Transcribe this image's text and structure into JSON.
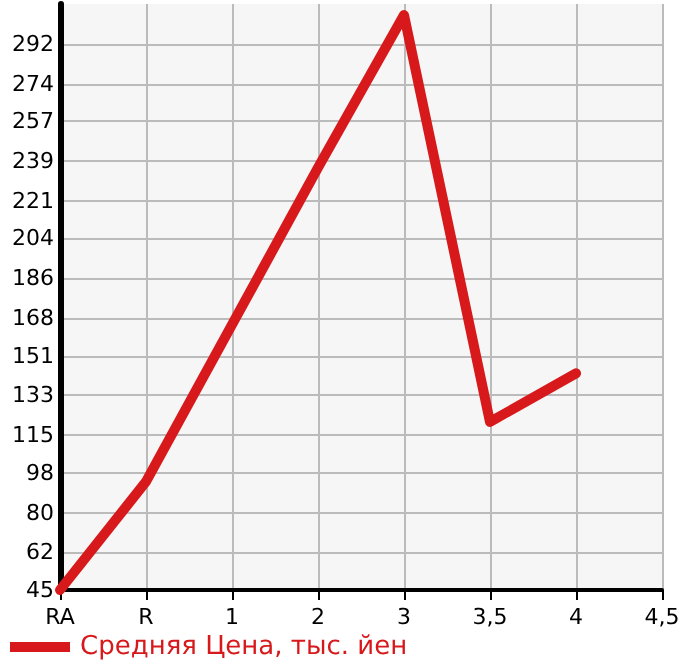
{
  "chart_data": {
    "type": "line",
    "categories": [
      "RA",
      "R",
      "1",
      "2",
      "3",
      "3,5",
      "4",
      "4,5"
    ],
    "series": [
      {
        "name": "Средняя Цена, тыс. йен",
        "color": "#d7191c",
        "values": [
          45,
          94,
          165,
          236,
          305,
          121,
          143,
          null
        ]
      }
    ],
    "ylim": [
      45,
      310
    ],
    "yticks": [
      45,
      62,
      80,
      98,
      115,
      133,
      151,
      168,
      186,
      204,
      221,
      239,
      257,
      274,
      292
    ],
    "grid": true,
    "legend": "bottom left",
    "marker": "none",
    "line_style": "solid"
  }
}
